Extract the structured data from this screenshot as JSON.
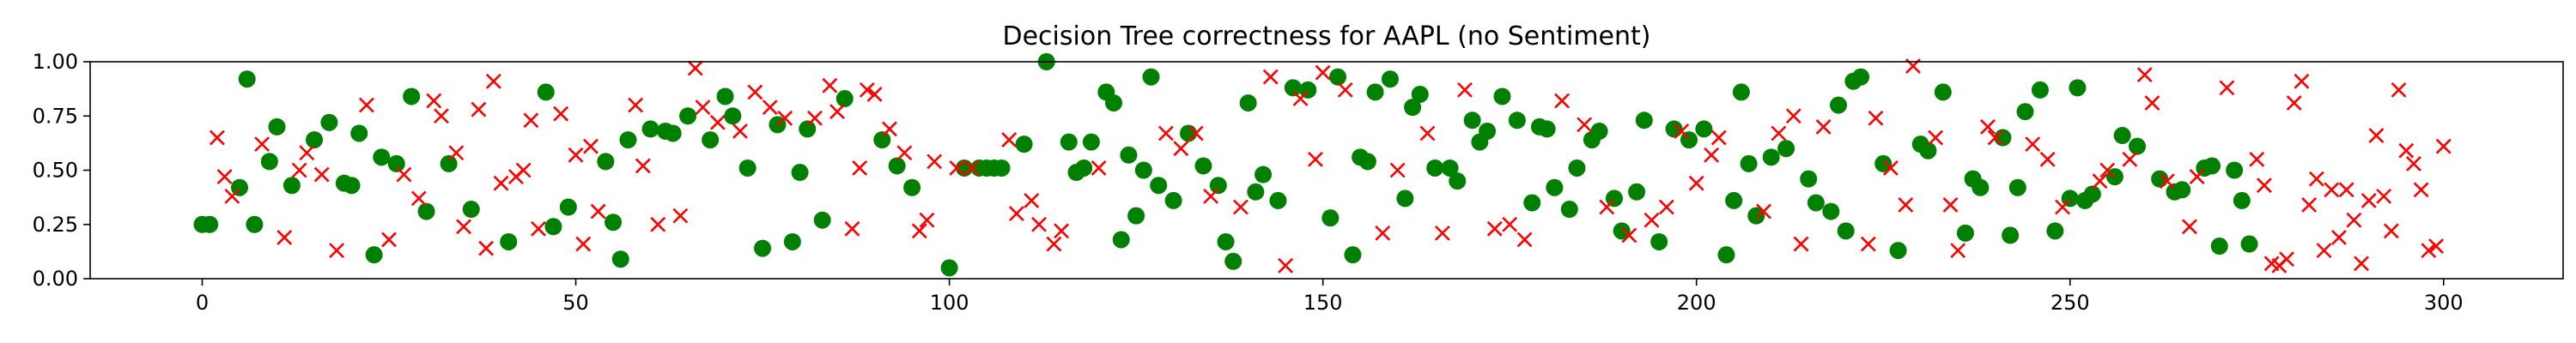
{
  "chart_data": {
    "type": "scatter",
    "title": "Decision Tree correctness for AAPL (no Sentiment)",
    "xlabel": "",
    "ylabel": "",
    "xlim": [
      -15,
      316
    ],
    "ylim": [
      0.0,
      1.0
    ],
    "xticks": [
      0,
      50,
      100,
      150,
      200,
      250,
      300
    ],
    "yticks": [
      0.0,
      0.25,
      0.5,
      0.75,
      1.0
    ],
    "xtick_labels": [
      "0",
      "50",
      "100",
      "150",
      "200",
      "250",
      "300"
    ],
    "ytick_labels": [
      "0.00",
      "0.25",
      "0.50",
      "0.75",
      "1.00"
    ],
    "grid": false,
    "series": [
      {
        "marker": "circle",
        "color": "#008000",
        "points": [
          [
            0,
            0.25
          ],
          [
            1,
            0.25
          ],
          [
            5,
            0.42
          ],
          [
            6,
            0.92
          ],
          [
            7,
            0.25
          ],
          [
            9,
            0.54
          ],
          [
            10,
            0.7
          ],
          [
            12,
            0.43
          ],
          [
            15,
            0.64
          ],
          [
            17,
            0.72
          ],
          [
            19,
            0.44
          ],
          [
            20,
            0.43
          ],
          [
            21,
            0.67
          ],
          [
            23,
            0.11
          ],
          [
            24,
            0.56
          ],
          [
            26,
            0.53
          ],
          [
            28,
            0.84
          ],
          [
            30,
            0.31
          ],
          [
            33,
            0.53
          ],
          [
            36,
            0.32
          ],
          [
            41,
            0.17
          ],
          [
            46,
            0.86
          ],
          [
            47,
            0.24
          ],
          [
            49,
            0.33
          ],
          [
            54,
            0.54
          ],
          [
            55,
            0.26
          ],
          [
            56,
            0.09
          ],
          [
            57,
            0.64
          ],
          [
            60,
            0.69
          ],
          [
            62,
            0.68
          ],
          [
            63,
            0.67
          ],
          [
            65,
            0.75
          ],
          [
            68,
            0.64
          ],
          [
            70,
            0.84
          ],
          [
            71,
            0.75
          ],
          [
            73,
            0.51
          ],
          [
            75,
            0.14
          ],
          [
            77,
            0.71
          ],
          [
            79,
            0.17
          ],
          [
            80,
            0.49
          ],
          [
            81,
            0.69
          ],
          [
            83,
            0.27
          ],
          [
            86,
            0.83
          ],
          [
            91,
            0.64
          ],
          [
            93,
            0.52
          ],
          [
            95,
            0.42
          ],
          [
            100,
            0.05
          ],
          [
            102,
            0.51
          ],
          [
            104,
            0.51
          ],
          [
            105,
            0.51
          ],
          [
            106,
            0.51
          ],
          [
            107,
            0.51
          ],
          [
            110,
            0.62
          ],
          [
            113,
            1.0
          ],
          [
            116,
            0.63
          ],
          [
            117,
            0.49
          ],
          [
            118,
            0.51
          ],
          [
            119,
            0.63
          ],
          [
            121,
            0.86
          ],
          [
            122,
            0.81
          ],
          [
            123,
            0.18
          ],
          [
            124,
            0.57
          ],
          [
            125,
            0.29
          ],
          [
            126,
            0.5
          ],
          [
            127,
            0.93
          ],
          [
            128,
            0.43
          ],
          [
            130,
            0.36
          ],
          [
            132,
            0.67
          ],
          [
            134,
            0.52
          ],
          [
            136,
            0.43
          ],
          [
            137,
            0.17
          ],
          [
            138,
            0.08
          ],
          [
            140,
            0.81
          ],
          [
            141,
            0.4
          ],
          [
            142,
            0.48
          ],
          [
            144,
            0.36
          ],
          [
            146,
            0.88
          ],
          [
            148,
            0.87
          ],
          [
            151,
            0.28
          ],
          [
            152,
            0.93
          ],
          [
            154,
            0.11
          ],
          [
            155,
            0.56
          ],
          [
            156,
            0.54
          ],
          [
            157,
            0.86
          ],
          [
            159,
            0.92
          ],
          [
            161,
            0.37
          ],
          [
            162,
            0.79
          ],
          [
            163,
            0.85
          ],
          [
            165,
            0.51
          ],
          [
            167,
            0.51
          ],
          [
            168,
            0.45
          ],
          [
            170,
            0.73
          ],
          [
            171,
            0.63
          ],
          [
            172,
            0.68
          ],
          [
            174,
            0.84
          ],
          [
            176,
            0.73
          ],
          [
            178,
            0.35
          ],
          [
            179,
            0.7
          ],
          [
            180,
            0.69
          ],
          [
            181,
            0.42
          ],
          [
            183,
            0.32
          ],
          [
            184,
            0.51
          ],
          [
            186,
            0.64
          ],
          [
            187,
            0.68
          ],
          [
            189,
            0.37
          ],
          [
            190,
            0.22
          ],
          [
            192,
            0.4
          ],
          [
            193,
            0.73
          ],
          [
            195,
            0.17
          ],
          [
            197,
            0.69
          ],
          [
            199,
            0.64
          ],
          [
            201,
            0.69
          ],
          [
            204,
            0.11
          ],
          [
            205,
            0.36
          ],
          [
            206,
            0.86
          ],
          [
            207,
            0.53
          ],
          [
            208,
            0.29
          ],
          [
            210,
            0.56
          ],
          [
            212,
            0.6
          ],
          [
            215,
            0.46
          ],
          [
            216,
            0.35
          ],
          [
            218,
            0.31
          ],
          [
            219,
            0.8
          ],
          [
            220,
            0.22
          ],
          [
            221,
            0.91
          ],
          [
            222,
            0.93
          ],
          [
            225,
            0.53
          ],
          [
            227,
            0.13
          ],
          [
            230,
            0.62
          ],
          [
            231,
            0.59
          ],
          [
            233,
            0.86
          ],
          [
            236,
            0.21
          ],
          [
            237,
            0.46
          ],
          [
            238,
            0.42
          ],
          [
            241,
            0.65
          ],
          [
            242,
            0.2
          ],
          [
            243,
            0.42
          ],
          [
            244,
            0.77
          ],
          [
            246,
            0.87
          ],
          [
            248,
            0.22
          ],
          [
            250,
            0.37
          ],
          [
            251,
            0.88
          ],
          [
            252,
            0.36
          ],
          [
            253,
            0.39
          ],
          [
            256,
            0.47
          ],
          [
            257,
            0.66
          ],
          [
            259,
            0.61
          ],
          [
            262,
            0.46
          ],
          [
            264,
            0.4
          ],
          [
            265,
            0.41
          ],
          [
            268,
            0.51
          ],
          [
            269,
            0.52
          ],
          [
            270,
            0.15
          ],
          [
            272,
            0.5
          ],
          [
            273,
            0.36
          ],
          [
            274,
            0.16
          ]
        ]
      },
      {
        "marker": "x",
        "color": "#ff0000",
        "points": [
          [
            2,
            0.65
          ],
          [
            3,
            0.47
          ],
          [
            4,
            0.38
          ],
          [
            8,
            0.62
          ],
          [
            11,
            0.19
          ],
          [
            13,
            0.5
          ],
          [
            14,
            0.58
          ],
          [
            16,
            0.48
          ],
          [
            18,
            0.13
          ],
          [
            22,
            0.8
          ],
          [
            25,
            0.18
          ],
          [
            27,
            0.48
          ],
          [
            29,
            0.37
          ],
          [
            31,
            0.82
          ],
          [
            32,
            0.75
          ],
          [
            34,
            0.58
          ],
          [
            35,
            0.24
          ],
          [
            37,
            0.78
          ],
          [
            38,
            0.14
          ],
          [
            39,
            0.91
          ],
          [
            40,
            0.44
          ],
          [
            42,
            0.47
          ],
          [
            43,
            0.5
          ],
          [
            44,
            0.73
          ],
          [
            45,
            0.23
          ],
          [
            48,
            0.76
          ],
          [
            50,
            0.57
          ],
          [
            51,
            0.16
          ],
          [
            52,
            0.61
          ],
          [
            53,
            0.31
          ],
          [
            58,
            0.8
          ],
          [
            59,
            0.52
          ],
          [
            61,
            0.25
          ],
          [
            64,
            0.29
          ],
          [
            66,
            0.97
          ],
          [
            67,
            0.79
          ],
          [
            69,
            0.72
          ],
          [
            72,
            0.68
          ],
          [
            74,
            0.86
          ],
          [
            76,
            0.79
          ],
          [
            78,
            0.74
          ],
          [
            82,
            0.74
          ],
          [
            84,
            0.89
          ],
          [
            85,
            0.77
          ],
          [
            87,
            0.23
          ],
          [
            88,
            0.51
          ],
          [
            89,
            0.87
          ],
          [
            90,
            0.85
          ],
          [
            92,
            0.69
          ],
          [
            94,
            0.58
          ],
          [
            96,
            0.22
          ],
          [
            97,
            0.27
          ],
          [
            98,
            0.54
          ],
          [
            101,
            0.51
          ],
          [
            103,
            0.51
          ],
          [
            108,
            0.64
          ],
          [
            109,
            0.3
          ],
          [
            111,
            0.36
          ],
          [
            112,
            0.25
          ],
          [
            114,
            0.16
          ],
          [
            115,
            0.22
          ],
          [
            120,
            0.51
          ],
          [
            129,
            0.67
          ],
          [
            131,
            0.6
          ],
          [
            133,
            0.67
          ],
          [
            135,
            0.38
          ],
          [
            139,
            0.33
          ],
          [
            143,
            0.93
          ],
          [
            145,
            0.06
          ],
          [
            147,
            0.83
          ],
          [
            149,
            0.55
          ],
          [
            150,
            0.95
          ],
          [
            153,
            0.87
          ],
          [
            158,
            0.21
          ],
          [
            160,
            0.5
          ],
          [
            164,
            0.67
          ],
          [
            166,
            0.21
          ],
          [
            169,
            0.87
          ],
          [
            173,
            0.23
          ],
          [
            175,
            0.25
          ],
          [
            177,
            0.18
          ],
          [
            182,
            0.82
          ],
          [
            185,
            0.71
          ],
          [
            188,
            0.33
          ],
          [
            191,
            0.2
          ],
          [
            194,
            0.27
          ],
          [
            196,
            0.33
          ],
          [
            198,
            0.68
          ],
          [
            200,
            0.44
          ],
          [
            202,
            0.57
          ],
          [
            203,
            0.65
          ],
          [
            209,
            0.31
          ],
          [
            211,
            0.67
          ],
          [
            213,
            0.75
          ],
          [
            214,
            0.16
          ],
          [
            217,
            0.7
          ],
          [
            223,
            0.16
          ],
          [
            224,
            0.74
          ],
          [
            226,
            0.51
          ],
          [
            228,
            0.34
          ],
          [
            229,
            0.98
          ],
          [
            232,
            0.65
          ],
          [
            234,
            0.34
          ],
          [
            235,
            0.13
          ],
          [
            239,
            0.7
          ],
          [
            240,
            0.65
          ],
          [
            245,
            0.62
          ],
          [
            247,
            0.55
          ],
          [
            249,
            0.33
          ],
          [
            254,
            0.45
          ],
          [
            255,
            0.5
          ],
          [
            258,
            0.55
          ],
          [
            260,
            0.94
          ],
          [
            261,
            0.81
          ],
          [
            263,
            0.45
          ],
          [
            266,
            0.24
          ],
          [
            267,
            0.47
          ],
          [
            271,
            0.88
          ],
          [
            275,
            0.55
          ],
          [
            276,
            0.43
          ],
          [
            277,
            0.07
          ],
          [
            278,
            0.06
          ],
          [
            279,
            0.09
          ],
          [
            280,
            0.81
          ],
          [
            281,
            0.91
          ],
          [
            282,
            0.34
          ],
          [
            283,
            0.46
          ],
          [
            284,
            0.13
          ],
          [
            285,
            0.41
          ],
          [
            286,
            0.19
          ],
          [
            287,
            0.41
          ],
          [
            288,
            0.27
          ],
          [
            289,
            0.07
          ],
          [
            290,
            0.36
          ],
          [
            291,
            0.66
          ],
          [
            292,
            0.38
          ],
          [
            293,
            0.22
          ],
          [
            294,
            0.87
          ],
          [
            295,
            0.59
          ],
          [
            296,
            0.53
          ],
          [
            297,
            0.41
          ],
          [
            298,
            0.13
          ],
          [
            299,
            0.15
          ],
          [
            300,
            0.61
          ]
        ]
      }
    ]
  }
}
